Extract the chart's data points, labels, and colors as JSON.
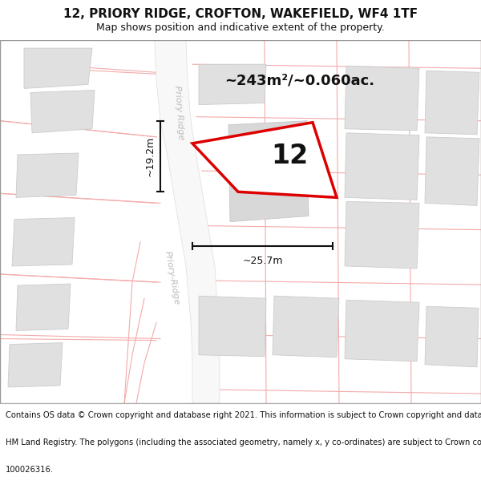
{
  "title": "12, PRIORY RIDGE, CROFTON, WAKEFIELD, WF4 1TF",
  "subtitle": "Map shows position and indicative extent of the property.",
  "footer_lines": [
    "Contains OS data © Crown copyright and database right 2021. This information is subject to Crown copyright and database rights 2023 and is reproduced with the permission of",
    "HM Land Registry. The polygons (including the associated geometry, namely x, y co-ordinates) are subject to Crown copyright and database rights 2023 Ordnance Survey",
    "100026316."
  ],
  "area_text": "~243m²/~0.060ac.",
  "width_label": "~25.7m",
  "height_label": "~19.2m",
  "number_label": "12",
  "road_label_upper": "Priory Ridge",
  "road_label_lower": "Priory-Ridge",
  "map_bg": "#ffffff",
  "road_color": "#f0f0f0",
  "block_color": "#e0e0e0",
  "red_outline": "#dd0000",
  "pink_line": "#f4aaaa",
  "dim_color": "#111111",
  "title_fontsize": 11,
  "subtitle_fontsize": 9,
  "footer_fontsize": 7.2,
  "area_fontsize": 13,
  "label_fontsize": 9,
  "number_fontsize": 24
}
